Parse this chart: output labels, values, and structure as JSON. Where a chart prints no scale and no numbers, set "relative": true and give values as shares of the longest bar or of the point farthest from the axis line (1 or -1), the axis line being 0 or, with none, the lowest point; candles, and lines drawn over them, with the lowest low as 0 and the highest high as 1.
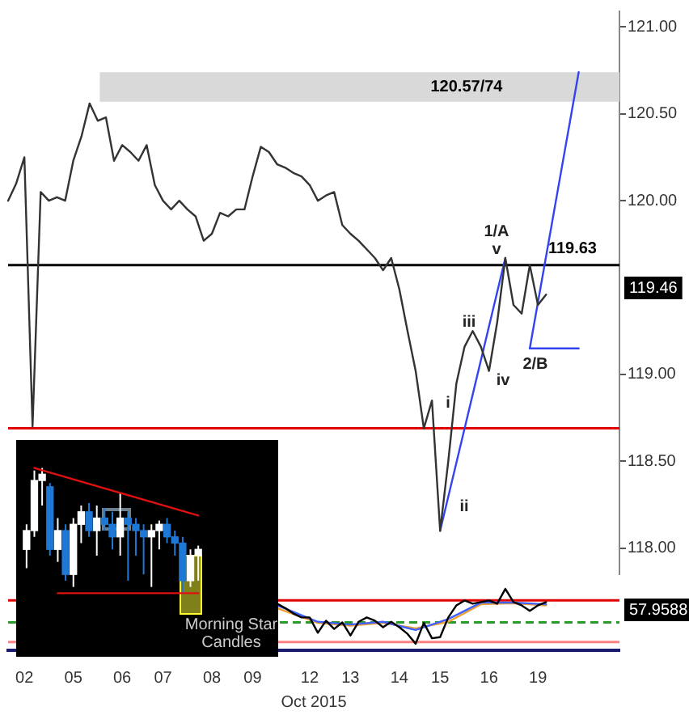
{
  "chart_data": [
    {
      "type": "line",
      "categories": [
        null,
        null,
        "02",
        null,
        null,
        null,
        null,
        null,
        "05",
        null,
        null,
        null,
        null,
        null,
        "06",
        null,
        null,
        null,
        null,
        "07",
        null,
        null,
        null,
        null,
        null,
        "08",
        null,
        null,
        null,
        null,
        "09",
        null,
        null,
        null,
        null,
        null,
        null,
        "12",
        null,
        null,
        null,
        null,
        "13",
        null,
        null,
        null,
        null,
        null,
        "14",
        null,
        null,
        null,
        null,
        "15",
        null,
        null,
        null,
        null,
        null,
        "16",
        null,
        null,
        null,
        null,
        null,
        "19",
        null,
        null,
        null,
        null,
        null,
        null,
        null,
        null,
        null,
        null
      ],
      "series": [
        {
          "color": "#333333",
          "values": [
            120.0,
            120.1,
            120.25,
            118.7,
            120.05,
            120.0,
            120.02,
            120.0,
            120.23,
            120.37,
            120.56,
            120.46,
            120.48,
            120.23,
            120.32,
            120.28,
            120.23,
            120.32,
            120.09,
            120.0,
            119.95,
            120.0,
            119.95,
            119.91,
            119.77,
            119.81,
            119.93,
            119.91,
            119.95,
            119.95,
            120.14,
            120.31,
            120.28,
            120.21,
            120.19,
            120.16,
            120.14,
            120.09,
            120.0,
            120.03,
            120.05,
            119.86,
            119.81,
            119.77,
            119.72,
            119.67,
            119.6,
            119.67,
            119.49,
            119.25,
            119.02,
            118.69,
            118.85,
            118.1,
            118.5,
            118.95,
            119.16,
            119.25,
            119.16,
            119.02,
            119.3,
            119.67,
            119.4,
            119.35,
            119.63,
            119.4,
            119.46,
            null,
            null,
            null,
            null,
            null,
            null,
            null,
            null,
            null
          ]
        },
        {
          "type": "line",
          "color": "#3344ee",
          "values": [
            null,
            null,
            null,
            null,
            null,
            null,
            null,
            null,
            null,
            null,
            null,
            null,
            null,
            null,
            null,
            null,
            null,
            null,
            null,
            null,
            null,
            null,
            null,
            null,
            null,
            null,
            null,
            null,
            null,
            null,
            null,
            null,
            null,
            null,
            null,
            null,
            null,
            null,
            null,
            null,
            null,
            null,
            null,
            null,
            null,
            null,
            null,
            null,
            null,
            null,
            null,
            null,
            null,
            118.1,
            null,
            null,
            null,
            null,
            null,
            null,
            null,
            119.67,
            null,
            null,
            null,
            null,
            null,
            null,
            null,
            null,
            null,
            null,
            null,
            null,
            null,
            null
          ]
        },
        {
          "type": "line",
          "color": "#3344ee",
          "values": [
            null,
            null,
            null,
            null,
            null,
            null,
            null,
            null,
            null,
            null,
            null,
            null,
            null,
            null,
            null,
            null,
            null,
            null,
            null,
            null,
            null,
            null,
            null,
            null,
            null,
            null,
            null,
            null,
            null,
            null,
            null,
            null,
            null,
            null,
            null,
            null,
            null,
            null,
            null,
            null,
            null,
            null,
            null,
            null,
            null,
            null,
            null,
            null,
            null,
            null,
            null,
            null,
            null,
            null,
            null,
            null,
            null,
            null,
            null,
            null,
            null,
            null,
            null,
            null,
            119.15,
            null,
            null,
            null,
            null,
            null,
            120.74,
            null,
            null,
            null,
            null,
            null
          ]
        },
        {
          "type": "line",
          "color": "#3344ee",
          "values": [
            null,
            null,
            null,
            null,
            null,
            null,
            null,
            null,
            null,
            null,
            null,
            null,
            null,
            null,
            null,
            null,
            null,
            null,
            null,
            null,
            null,
            null,
            null,
            null,
            null,
            null,
            null,
            null,
            null,
            null,
            null,
            null,
            null,
            null,
            null,
            null,
            null,
            null,
            null,
            null,
            null,
            null,
            null,
            null,
            null,
            null,
            null,
            null,
            null,
            null,
            null,
            null,
            null,
            null,
            null,
            null,
            null,
            null,
            null,
            null,
            null,
            null,
            null,
            null,
            119.15,
            null,
            null,
            null,
            null,
            null,
            119.15,
            null,
            null,
            null,
            null,
            null
          ]
        }
      ],
      "ylim": [
        117.85,
        121.09
      ],
      "yticks": [
        {
          "value": 118,
          "label": "118.00"
        },
        {
          "value": 118.5,
          "label": "118.50"
        },
        {
          "value": 119,
          "label": "119.00"
        },
        {
          "value": 120,
          "label": "120.00"
        },
        {
          "value": 120.5,
          "label": "120.50"
        },
        {
          "value": 121,
          "label": "121.00"
        }
      ],
      "tick_labels": "y",
      "marker": "none",
      "bands": [
        {
          "axis": "y",
          "from": 120.57,
          "to": 120.74,
          "label": "120.57/74",
          "color": "#d9d9d9"
        }
      ],
      "ref_lines": [
        {
          "axis": "y",
          "value": 119.63,
          "label": "119.63",
          "color": "#000000"
        },
        {
          "axis": "y",
          "value": 118.69,
          "color": "#e00000"
        }
      ],
      "annotations": [
        "119.46",
        "1/A",
        "v",
        "iii",
        "iv",
        "2/B",
        "i",
        "ii"
      ]
    },
    {
      "type": "candlestick",
      "relative": true,
      "categories": [
        null,
        null,
        null,
        null,
        null,
        null,
        null,
        null,
        null,
        null,
        null,
        null,
        null,
        null,
        null,
        null,
        null,
        null,
        null,
        null,
        null,
        null,
        null
      ],
      "ohlc": [
        [
          0.35,
          0.55,
          0.2,
          0.5
        ],
        [
          0.5,
          0.98,
          0.45,
          0.9
        ],
        [
          0.9,
          1,
          0.7,
          0.95
        ],
        [
          0.85,
          0.88,
          0.3,
          0.35
        ],
        [
          0.35,
          0.6,
          0.25,
          0.5
        ],
        [
          0.5,
          0.55,
          0.1,
          0.15
        ],
        [
          0.15,
          0.6,
          0.05,
          0.55
        ],
        [
          0.55,
          0.7,
          0.4,
          0.65
        ],
        [
          0.65,
          0.72,
          0.45,
          0.5
        ],
        [
          0.5,
          0.7,
          0.3,
          0.6
        ],
        [
          0.6,
          0.68,
          0.5,
          0.55
        ],
        [
          0.55,
          0.65,
          0.35,
          0.45
        ],
        [
          0.45,
          0.8,
          0.3,
          0.6
        ],
        [
          0.6,
          0.65,
          0.1,
          0.55
        ],
        [
          0.55,
          0.6,
          0.3,
          0.5
        ],
        [
          0.5,
          0.55,
          0.15,
          0.45
        ],
        [
          0.45,
          0.55,
          0.05,
          0.5
        ],
        [
          0.5,
          0.58,
          0.35,
          0.55
        ],
        [
          0.55,
          0.6,
          0.4,
          0.45
        ],
        [
          0.45,
          0.5,
          0.3,
          0.4
        ],
        [
          0.4,
          0.45,
          0,
          0.1
        ],
        [
          0.1,
          0.35,
          0.05,
          0.3
        ],
        [
          0.3,
          0.38,
          0.1,
          0.35
        ]
      ],
      "colors": [
        "#ffffff",
        "#ffffff",
        "#ffffff",
        "#1e78d6",
        "#ffffff",
        "#1e78d6",
        "#ffffff",
        "#ffffff",
        "#1e78d6",
        "#ffffff",
        "#1e78d6",
        "#1e78d6",
        "#ffffff",
        "#1e78d6",
        "#1e78d6",
        "#1e78d6",
        "#ffffff",
        "#ffffff",
        "#1e78d6",
        "#1e78d6",
        "#1e78d6",
        "#ffffff",
        "#ffffff"
      ],
      "series": [
        {
          "type": "line",
          "color": "#e01010",
          "values": [
            null,
            1,
            null,
            null,
            null,
            null,
            null,
            null,
            null,
            null,
            null,
            null,
            null,
            null,
            null,
            null,
            null,
            null,
            null,
            null,
            null,
            null,
            0.62
          ]
        },
        {
          "type": "line",
          "color": "#e01010",
          "values": [
            null,
            null,
            null,
            null,
            0,
            null,
            null,
            null,
            null,
            null,
            null,
            null,
            null,
            null,
            null,
            null,
            null,
            null,
            null,
            null,
            null,
            null,
            0
          ]
        }
      ],
      "tick_labels": false,
      "marker": "none",
      "annotations": [
        "Morning Star Candles"
      ]
    },
    {
      "type": "line",
      "relative": true,
      "xlabel": "Oct 2015",
      "categories": [
        null,
        null,
        "02",
        null,
        null,
        null,
        null,
        null,
        "05",
        null,
        null,
        null,
        null,
        null,
        "06",
        null,
        null,
        null,
        null,
        "07",
        null,
        null,
        null,
        null,
        null,
        "08",
        null,
        null,
        null,
        null,
        "09",
        null,
        null,
        null,
        null,
        null,
        null,
        "12",
        null,
        null,
        null,
        null,
        "13",
        null,
        null,
        null,
        null,
        null,
        "14",
        null,
        null,
        null,
        null,
        "15",
        null,
        null,
        null,
        null,
        null,
        "16",
        null,
        null,
        null,
        null,
        null,
        "19",
        null,
        null,
        null,
        null,
        null,
        null,
        null,
        null,
        null,
        null
      ],
      "series": [
        {
          "color": "#000000",
          "values": [
            null,
            null,
            null,
            null,
            null,
            null,
            null,
            null,
            null,
            null,
            null,
            null,
            null,
            null,
            null,
            null,
            null,
            null,
            null,
            null,
            null,
            null,
            null,
            null,
            null,
            null,
            null,
            null,
            null,
            null,
            null,
            null,
            null,
            0.73,
            0.65,
            0.55,
            0.48,
            0.48,
            0.2,
            0.42,
            0.27,
            0.39,
            0.15,
            0.4,
            0.48,
            0.42,
            0.3,
            0.4,
            0.3,
            0.18,
            0,
            0.38,
            0.1,
            0.12,
            0.48,
            0.7,
            0.79,
            0.73,
            0.76,
            0.79,
            0.73,
            1,
            0.76,
            0.7,
            0.6,
            0.7,
            0.76,
            null,
            null,
            null,
            null,
            null,
            null,
            null,
            null,
            null
          ]
        },
        {
          "color": "#4060ff",
          "values": [
            null,
            null,
            null,
            null,
            null,
            null,
            null,
            null,
            null,
            null,
            null,
            null,
            null,
            null,
            null,
            null,
            null,
            null,
            null,
            null,
            null,
            null,
            null,
            null,
            null,
            null,
            null,
            null,
            null,
            null,
            null,
            null,
            null,
            0.7,
            null,
            null,
            null,
            null,
            0.4,
            null,
            null,
            null,
            0.35,
            null,
            null,
            null,
            0.4,
            null,
            null,
            null,
            0.25,
            null,
            null,
            null,
            0.45,
            null,
            null,
            null,
            0.75,
            null,
            null,
            null,
            0.75,
            null,
            null,
            null,
            0.72,
            null,
            null,
            null,
            null,
            null,
            null,
            null,
            null,
            null
          ]
        },
        {
          "color": "#f0a030",
          "values": [
            null,
            null,
            null,
            null,
            null,
            null,
            null,
            null,
            null,
            null,
            null,
            null,
            null,
            null,
            null,
            null,
            null,
            null,
            null,
            null,
            null,
            null,
            null,
            null,
            null,
            null,
            null,
            null,
            null,
            null,
            null,
            null,
            null,
            0.65,
            null,
            null,
            null,
            null,
            0.38,
            null,
            null,
            null,
            0.33,
            null,
            null,
            null,
            0.38,
            null,
            null,
            null,
            0.28,
            null,
            null,
            null,
            0.4,
            null,
            null,
            null,
            0.72,
            null,
            null,
            null,
            0.74,
            null,
            null,
            null,
            0.7,
            null,
            null,
            null,
            null,
            null,
            null,
            null,
            null,
            null
          ]
        }
      ],
      "tick_labels": "x",
      "marker": "none",
      "ref_lines": [
        {
          "axis": "y",
          "value": 0.79,
          "color": "#e00000"
        },
        {
          "axis": "y",
          "value": 0.39,
          "color": "#2a9a2a",
          "line_style": "dashed"
        },
        {
          "axis": "y",
          "value": 0.03,
          "color": "#ff8080"
        }
      ],
      "annotations": [
        "57.9588"
      ]
    }
  ]
}
